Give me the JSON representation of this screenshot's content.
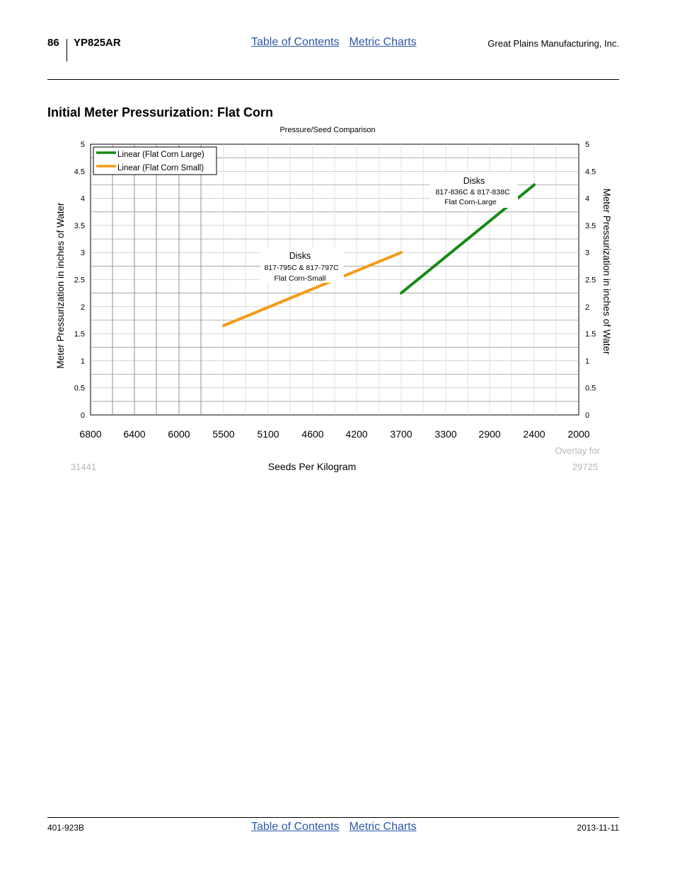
{
  "header": {
    "page_number": "86",
    "model": "YP825AR",
    "nav": {
      "toc": "Table of Contents",
      "metric": "Metric Charts"
    },
    "company": "Great Plains Manufacturing, Inc."
  },
  "section": {
    "title": "Initial Meter Pressurization: Flat Corn"
  },
  "chart_data": {
    "type": "line",
    "title": "Pressure/Seed Comparison",
    "xlabel": "Seeds Per Kilogram",
    "ylabel": "Meter Pressurization in inches of Water",
    "ylabel_right": "Meter Pressurization in inches of Water",
    "x_ticks": [
      "6800",
      "6400",
      "6000",
      "5500",
      "5100",
      "4600",
      "4200",
      "3700",
      "3300",
      "2900",
      "2400",
      "2000"
    ],
    "x_tick_values": [
      6800,
      6400,
      6000,
      5500,
      5100,
      4600,
      4200,
      3700,
      3300,
      2900,
      2400,
      2000
    ],
    "xlim": [
      6800,
      2000
    ],
    "y_ticks": [
      "0",
      "0.5",
      "1",
      "1.5",
      "2",
      "2.5",
      "3",
      "3.5",
      "4",
      "4.5",
      "5"
    ],
    "ylim": [
      0,
      5
    ],
    "grid": true,
    "legend_position": "top-left",
    "series": [
      {
        "name": "Linear (Flat Corn Large)",
        "color": "#158a15",
        "x": [
          3700,
          2400
        ],
        "y": [
          2.25,
          4.25
        ]
      },
      {
        "name": "Linear (Flat Corn Small)",
        "color": "#f59a16",
        "x": [
          5500,
          3700
        ],
        "y": [
          1.65,
          3.0
        ]
      }
    ],
    "annotations": [
      {
        "title": "Disks",
        "line1": "817-836C & 817-838C",
        "line2": "Flat Corn-Large"
      },
      {
        "title": "Disks",
        "line1": "817-795C & 817-797C",
        "line2": "Flat Corn-Small"
      }
    ],
    "overlay": {
      "label": "Overlay for",
      "left_value": "31441",
      "right_value": "29725"
    }
  },
  "footer": {
    "doc_number": "401-923B",
    "nav": {
      "toc": "Table of Contents",
      "metric": "Metric Charts"
    },
    "date": "2013-11-11"
  }
}
